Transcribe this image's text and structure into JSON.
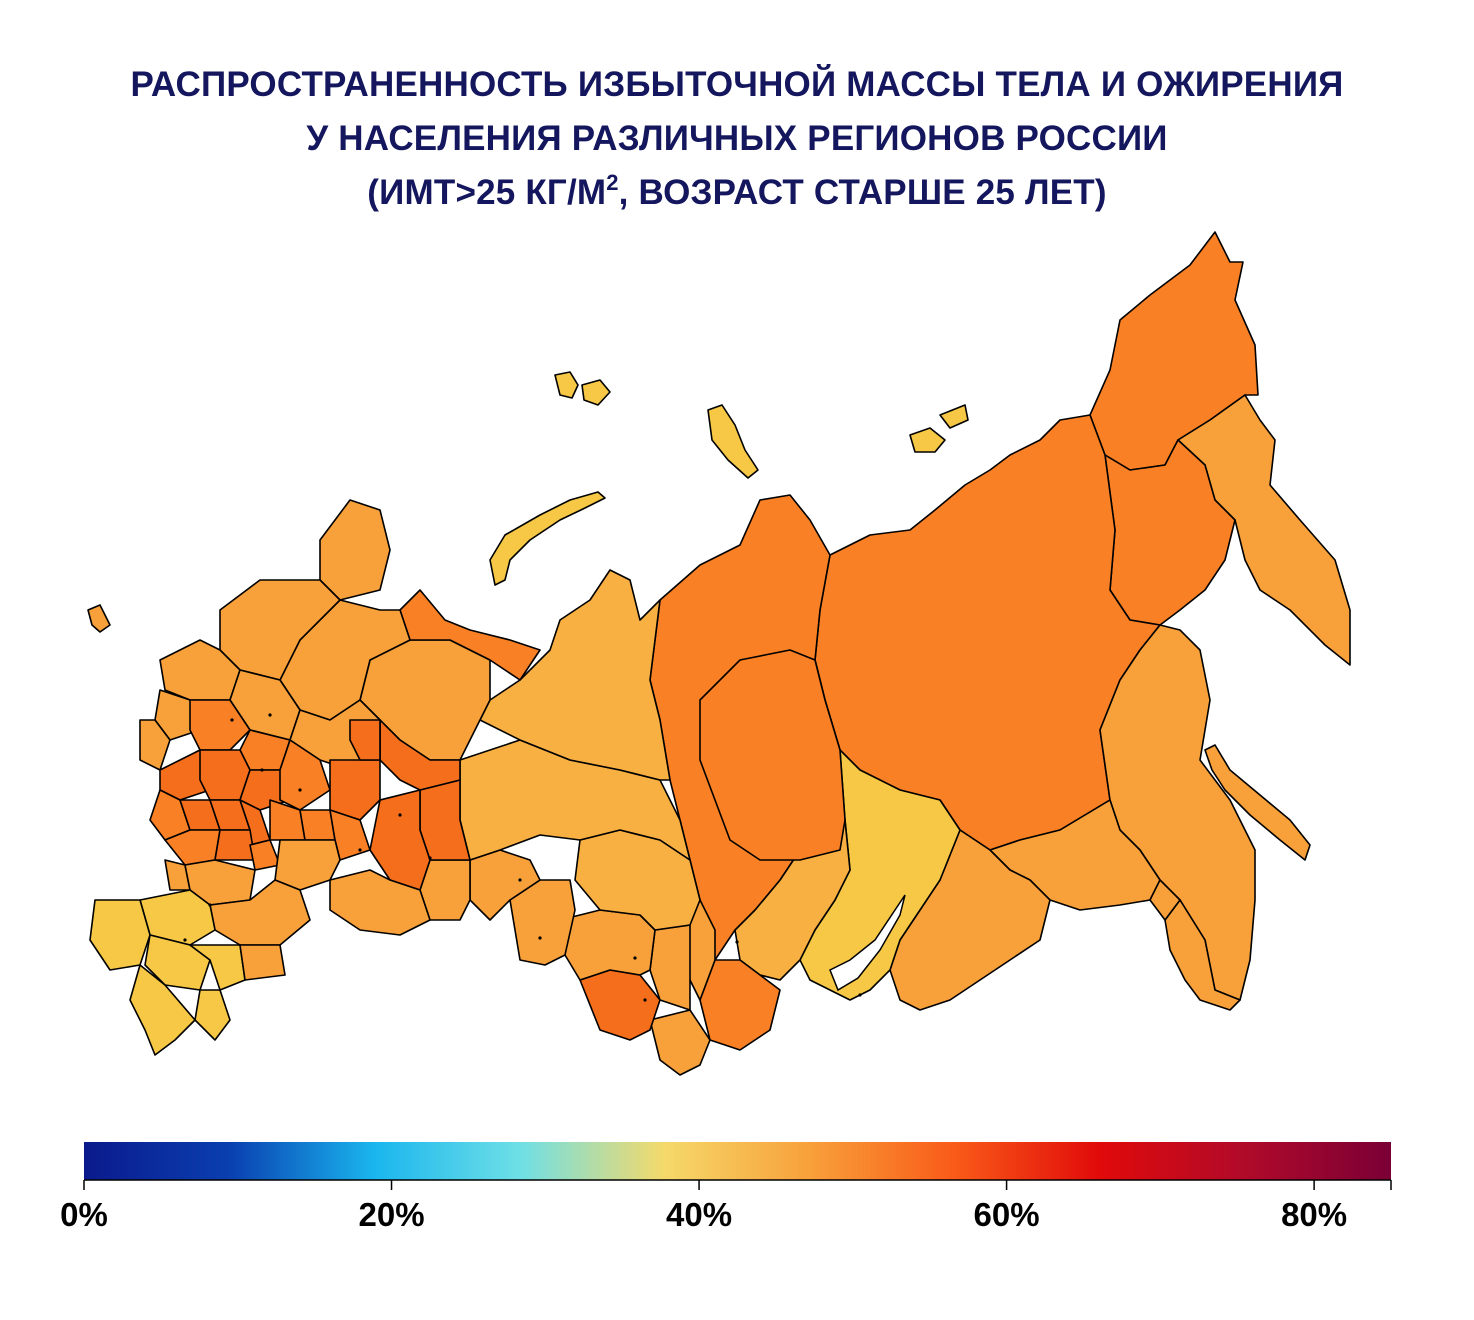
{
  "title": {
    "line1": "РАСПРОСТРАНЕННОСТЬ ИЗБЫТОЧНОЙ МАССЫ ТЕЛА И ОЖИРЕНИЯ",
    "line2": "У НАСЕЛЕНИЯ РАЗЛИЧНЫХ РЕГИОНОВ РОССИИ",
    "line3_a": "(ИМТ>25 КГ/М",
    "line3_sup": "2",
    "line3_b": ",  ВОЗРАСТ СТАРШЕ 25 ЛЕТ)"
  },
  "map": {
    "region_colors": {
      "low": "#f7c846",
      "mid_low": "#f9b043",
      "mid": "#f8a03a",
      "high": "#f98024",
      "highest": "#f56e1c"
    },
    "border_color": "#000000"
  },
  "legend": {
    "ticks": [
      "0%",
      "20%",
      "40%",
      "60%",
      "80%"
    ],
    "range": [
      0,
      85
    ],
    "color_stops": [
      "#0a1a8c",
      "#0a3fb0",
      "#1ab6ee",
      "#6edfe6",
      "#f5d96a",
      "#f8a03a",
      "#f95a18",
      "#e00a0a",
      "#b00a2a",
      "#7a0035"
    ]
  }
}
